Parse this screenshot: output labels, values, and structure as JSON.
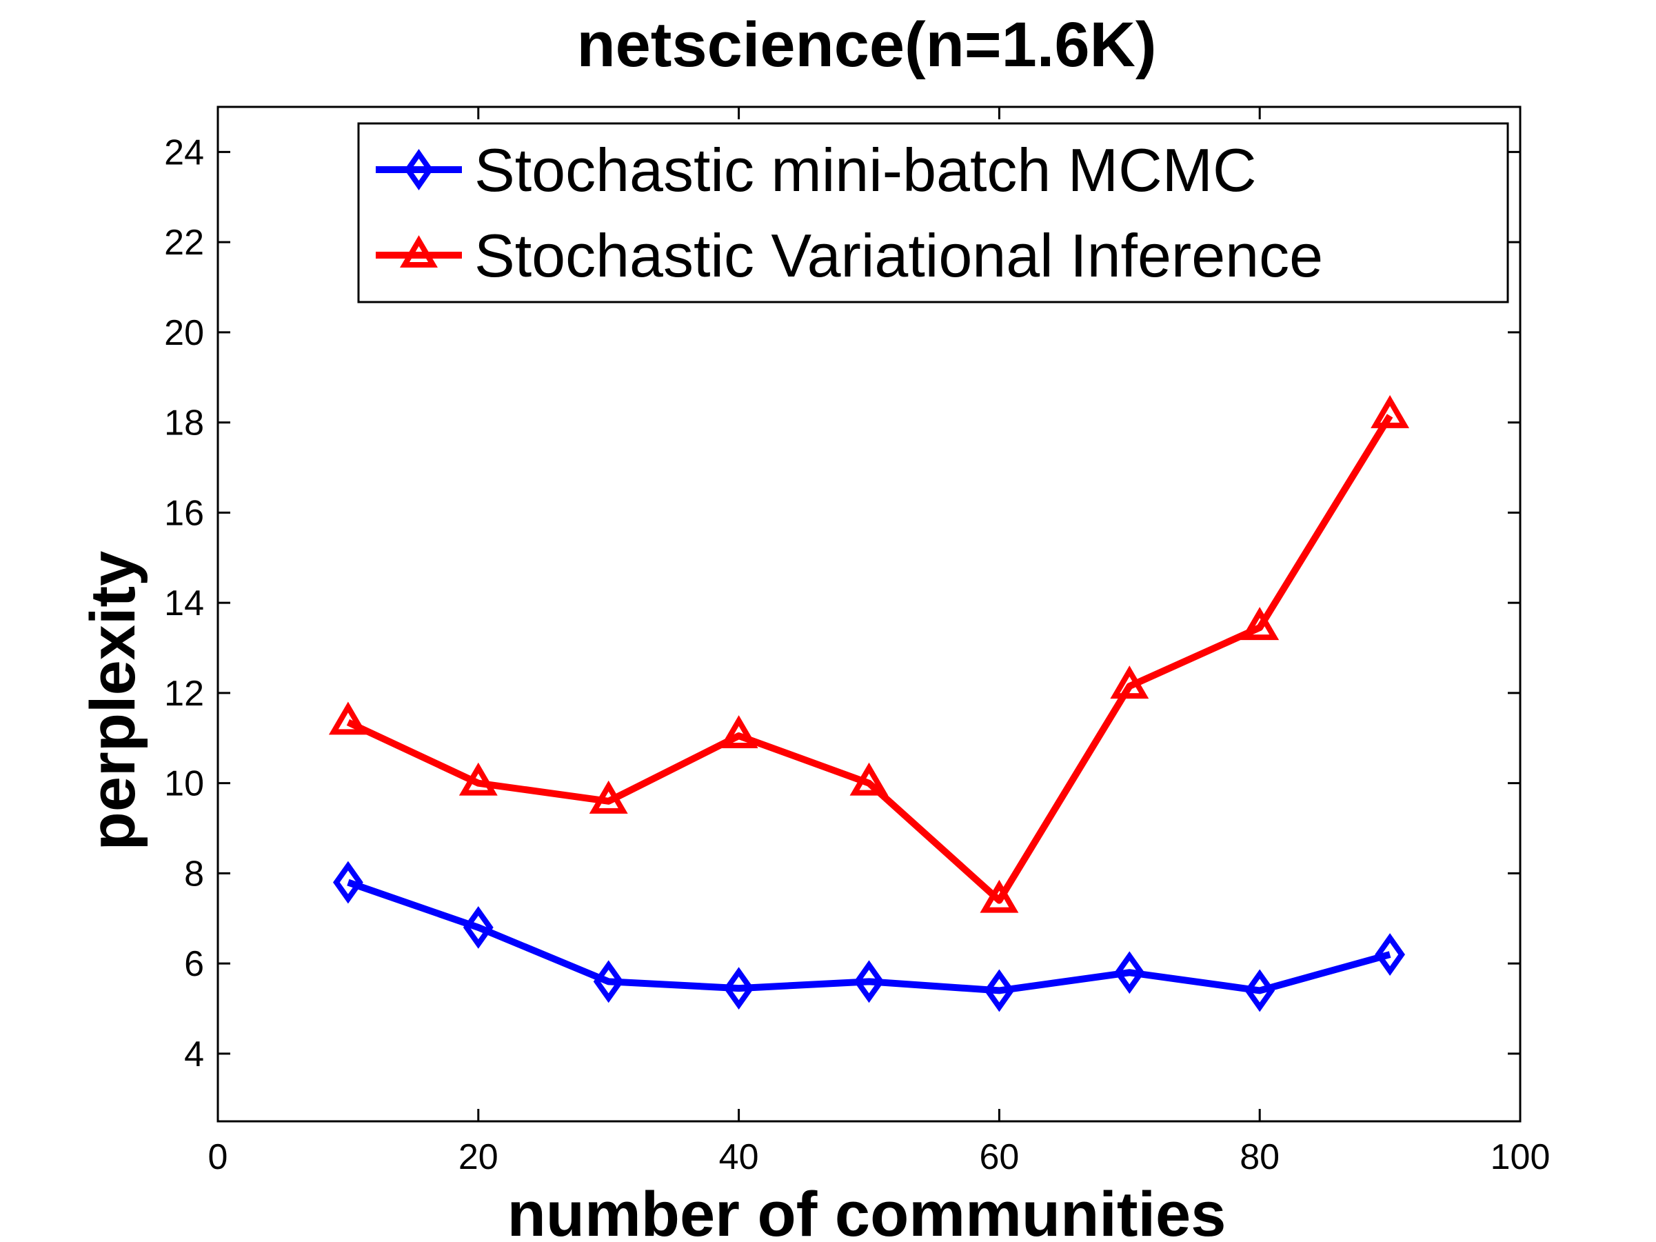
{
  "chart_data": {
    "type": "line",
    "title": "netscience(n=1.6K)",
    "xlabel": "number of communities",
    "ylabel": "perplexity",
    "xlim": [
      0,
      100
    ],
    "ylim": [
      2.5,
      25
    ],
    "xticks": [
      0,
      20,
      40,
      60,
      80,
      100
    ],
    "yticks": [
      4,
      6,
      8,
      10,
      12,
      14,
      16,
      18,
      20,
      22,
      24
    ],
    "x": [
      10,
      20,
      30,
      40,
      50,
      60,
      70,
      80,
      90
    ],
    "grid": false,
    "legend_position": "top-right",
    "series": [
      {
        "name": "Stochastic mini-batch MCMC",
        "color": "#0000ff",
        "marker": "diamond",
        "values": [
          7.8,
          6.8,
          5.6,
          5.45,
          5.6,
          5.4,
          5.8,
          5.4,
          6.2
        ]
      },
      {
        "name": "Stochastic Variational Inference",
        "color": "#ff0000",
        "marker": "triangle",
        "values": [
          11.35,
          10.0,
          9.6,
          11.05,
          10.0,
          7.4,
          12.15,
          13.45,
          18.15
        ]
      }
    ]
  }
}
